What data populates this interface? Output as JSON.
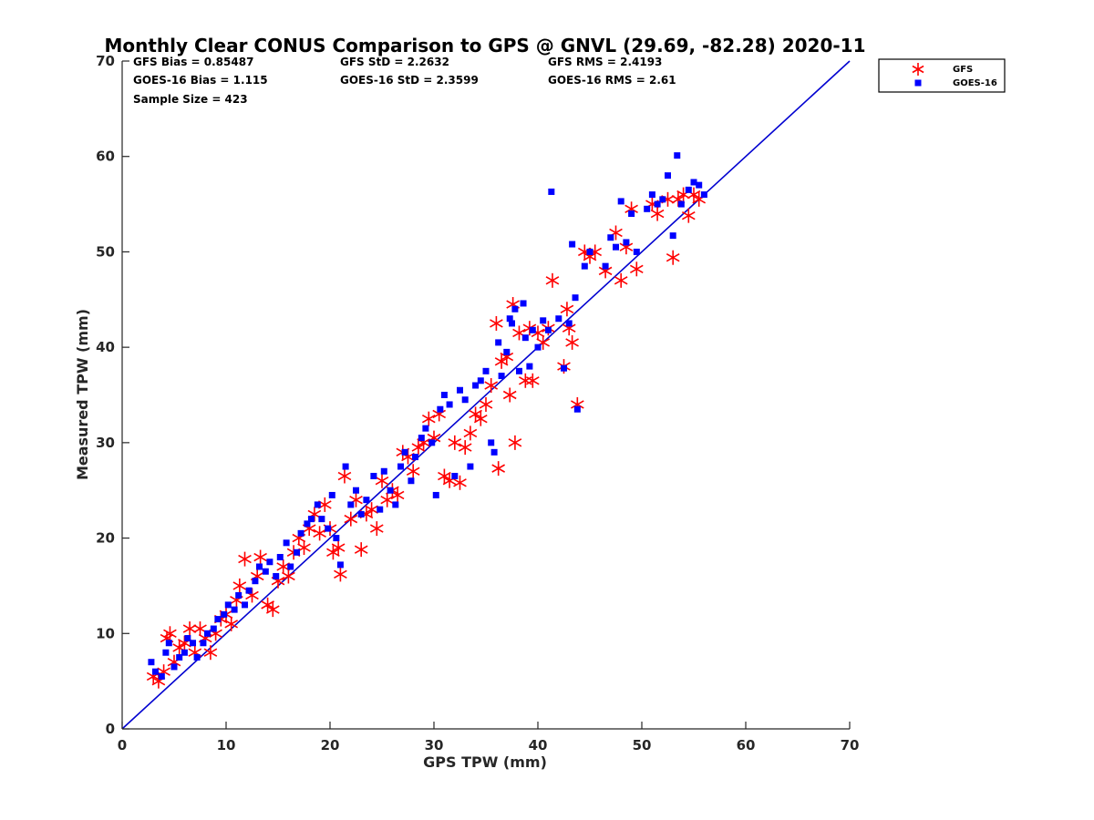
{
  "chart_data": {
    "type": "scatter",
    "title": "Monthly Clear CONUS Comparison to GPS @ GNVL (29.69, -82.28) 2020-11",
    "xlabel": "GPS TPW (mm)",
    "ylabel": "Measured TPW (mm)",
    "xlim": [
      0,
      70
    ],
    "ylim": [
      0,
      70
    ],
    "xticks": [
      "0",
      "10",
      "20",
      "30",
      "40",
      "50",
      "60",
      "70"
    ],
    "yticks": [
      "0",
      "10",
      "20",
      "30",
      "40",
      "50",
      "60",
      "70"
    ],
    "grid": false,
    "legend_position": "top-right",
    "stats": [
      [
        "GFS Bias = 0.85487",
        "GFS StD = 2.2632",
        "GFS RMS = 2.4193"
      ],
      [
        "GOES-16 Bias = 1.115",
        "GOES-16 StD = 2.3599",
        "GOES-16 RMS = 2.61"
      ],
      [
        "Sample Size = 423"
      ]
    ],
    "reference_line": {
      "style": "one-to-one",
      "color": "#0000d0",
      "from": [
        0,
        0
      ],
      "to": [
        70,
        70
      ]
    },
    "series": [
      {
        "name": "GFS",
        "marker": "asterisk",
        "color": "#ff0000",
        "points": [
          [
            3.0,
            5.5
          ],
          [
            3.5,
            5.0
          ],
          [
            4.0,
            6.0
          ],
          [
            4.3,
            9.5
          ],
          [
            4.6,
            10.0
          ],
          [
            5.0,
            7.0
          ],
          [
            5.5,
            8.5
          ],
          [
            6.0,
            9.0
          ],
          [
            6.5,
            10.5
          ],
          [
            7.0,
            8.0
          ],
          [
            7.5,
            10.5
          ],
          [
            8.0,
            9.5
          ],
          [
            8.5,
            8.0
          ],
          [
            9.0,
            10.0
          ],
          [
            9.5,
            11.5
          ],
          [
            10.0,
            12.0
          ],
          [
            10.5,
            11.0
          ],
          [
            11.0,
            13.5
          ],
          [
            11.3,
            15.0
          ],
          [
            11.8,
            17.8
          ],
          [
            12.5,
            14.0
          ],
          [
            13.0,
            16.0
          ],
          [
            13.3,
            18.0
          ],
          [
            14.0,
            13.0
          ],
          [
            14.5,
            12.5
          ],
          [
            15.0,
            15.5
          ],
          [
            15.5,
            17.0
          ],
          [
            16.0,
            16.0
          ],
          [
            16.5,
            18.5
          ],
          [
            17.0,
            20.0
          ],
          [
            17.5,
            19.0
          ],
          [
            18.0,
            21.0
          ],
          [
            18.5,
            22.5
          ],
          [
            19.0,
            20.5
          ],
          [
            19.5,
            23.5
          ],
          [
            20.0,
            21.0
          ],
          [
            20.3,
            18.5
          ],
          [
            20.8,
            19.0
          ],
          [
            21.0,
            16.2
          ],
          [
            21.4,
            26.5
          ],
          [
            22.0,
            22.0
          ],
          [
            22.5,
            24.0
          ],
          [
            23.0,
            18.8
          ],
          [
            23.5,
            22.5
          ],
          [
            24.0,
            23.0
          ],
          [
            24.5,
            21.0
          ],
          [
            25.0,
            26.0
          ],
          [
            25.5,
            24.0
          ],
          [
            26.0,
            25.0
          ],
          [
            26.5,
            24.5
          ],
          [
            27.0,
            29.0
          ],
          [
            27.5,
            28.5
          ],
          [
            28.0,
            27.0
          ],
          [
            28.5,
            29.5
          ],
          [
            29.0,
            30.0
          ],
          [
            29.5,
            32.5
          ],
          [
            30.0,
            30.5
          ],
          [
            30.5,
            33.0
          ],
          [
            31.0,
            26.5
          ],
          [
            31.5,
            26.0
          ],
          [
            32.0,
            30.0
          ],
          [
            32.5,
            25.8
          ],
          [
            33.0,
            29.5
          ],
          [
            33.5,
            31.0
          ],
          [
            34.0,
            33.0
          ],
          [
            34.5,
            32.5
          ],
          [
            35.0,
            34.0
          ],
          [
            35.5,
            36.0
          ],
          [
            36.0,
            42.5
          ],
          [
            36.2,
            27.3
          ],
          [
            36.5,
            38.5
          ],
          [
            37.0,
            39.0
          ],
          [
            37.3,
            35.0
          ],
          [
            37.6,
            44.5
          ],
          [
            37.8,
            30.0
          ],
          [
            38.2,
            41.5
          ],
          [
            38.8,
            36.5
          ],
          [
            39.2,
            42.0
          ],
          [
            39.5,
            36.5
          ],
          [
            40.0,
            41.5
          ],
          [
            40.5,
            40.5
          ],
          [
            41.0,
            42.0
          ],
          [
            41.4,
            47.0
          ],
          [
            42.5,
            38.0
          ],
          [
            42.8,
            44.0
          ],
          [
            43.0,
            42.0
          ],
          [
            43.3,
            40.5
          ],
          [
            43.8,
            34.0
          ],
          [
            44.5,
            50.0
          ],
          [
            45.0,
            49.5
          ],
          [
            45.5,
            50.0
          ],
          [
            46.5,
            48.0
          ],
          [
            47.5,
            52.0
          ],
          [
            48.0,
            47.0
          ],
          [
            48.5,
            50.5
          ],
          [
            49.0,
            54.5
          ],
          [
            49.5,
            48.2
          ],
          [
            51.0,
            55.0
          ],
          [
            51.5,
            54.0
          ],
          [
            52.5,
            55.5
          ],
          [
            53.0,
            49.4
          ],
          [
            53.5,
            55.5
          ],
          [
            54.0,
            56.0
          ],
          [
            54.5,
            53.8
          ],
          [
            55.0,
            56.0
          ],
          [
            55.5,
            55.5
          ]
        ]
      },
      {
        "name": "GOES-16",
        "marker": "square",
        "color": "#0000ff",
        "points": [
          [
            2.8,
            7.0
          ],
          [
            3.2,
            6.0
          ],
          [
            3.8,
            5.5
          ],
          [
            4.2,
            8.0
          ],
          [
            4.5,
            9.0
          ],
          [
            5.0,
            6.5
          ],
          [
            5.5,
            7.5
          ],
          [
            6.0,
            8.0
          ],
          [
            6.3,
            9.5
          ],
          [
            6.8,
            9.0
          ],
          [
            7.2,
            7.5
          ],
          [
            7.8,
            9.0
          ],
          [
            8.2,
            10.0
          ],
          [
            8.8,
            10.5
          ],
          [
            9.2,
            11.5
          ],
          [
            9.8,
            12.0
          ],
          [
            10.2,
            13.0
          ],
          [
            10.8,
            12.5
          ],
          [
            11.2,
            14.0
          ],
          [
            11.8,
            13.0
          ],
          [
            12.2,
            14.5
          ],
          [
            12.8,
            15.5
          ],
          [
            13.2,
            17.0
          ],
          [
            13.8,
            16.5
          ],
          [
            14.2,
            17.5
          ],
          [
            14.8,
            16.0
          ],
          [
            15.2,
            18.0
          ],
          [
            15.8,
            19.5
          ],
          [
            16.2,
            17.0
          ],
          [
            16.8,
            18.5
          ],
          [
            17.2,
            20.5
          ],
          [
            17.8,
            21.5
          ],
          [
            18.2,
            22.0
          ],
          [
            18.8,
            23.5
          ],
          [
            19.2,
            22.0
          ],
          [
            19.8,
            21.0
          ],
          [
            20.2,
            24.5
          ],
          [
            20.6,
            20.0
          ],
          [
            21.0,
            17.2
          ],
          [
            21.5,
            27.5
          ],
          [
            22.0,
            23.5
          ],
          [
            22.5,
            25.0
          ],
          [
            23.0,
            22.5
          ],
          [
            23.5,
            24.0
          ],
          [
            24.2,
            26.5
          ],
          [
            24.8,
            23.0
          ],
          [
            25.2,
            27.0
          ],
          [
            25.8,
            25.0
          ],
          [
            26.3,
            23.5
          ],
          [
            26.8,
            27.5
          ],
          [
            27.2,
            29.0
          ],
          [
            27.8,
            26.0
          ],
          [
            28.2,
            28.5
          ],
          [
            28.8,
            30.5
          ],
          [
            29.2,
            31.5
          ],
          [
            29.8,
            30.0
          ],
          [
            30.2,
            24.5
          ],
          [
            30.6,
            33.5
          ],
          [
            31.0,
            35.0
          ],
          [
            31.5,
            34.0
          ],
          [
            32.0,
            26.5
          ],
          [
            32.5,
            35.5
          ],
          [
            33.0,
            34.5
          ],
          [
            33.5,
            27.5
          ],
          [
            34.0,
            36.0
          ],
          [
            34.5,
            36.5
          ],
          [
            35.0,
            37.5
          ],
          [
            35.5,
            30.0
          ],
          [
            35.8,
            29.0
          ],
          [
            36.2,
            40.5
          ],
          [
            36.5,
            37.0
          ],
          [
            37.0,
            39.5
          ],
          [
            37.3,
            43.0
          ],
          [
            37.5,
            42.5
          ],
          [
            37.8,
            44.0
          ],
          [
            38.2,
            37.5
          ],
          [
            38.6,
            44.6
          ],
          [
            38.8,
            41.0
          ],
          [
            39.2,
            38.0
          ],
          [
            39.5,
            41.8
          ],
          [
            40.0,
            40.0
          ],
          [
            40.5,
            42.8
          ],
          [
            41.0,
            41.8
          ],
          [
            41.3,
            56.3
          ],
          [
            42.0,
            43.0
          ],
          [
            42.5,
            37.8
          ],
          [
            43.0,
            42.5
          ],
          [
            43.3,
            50.8
          ],
          [
            43.6,
            45.2
          ],
          [
            43.8,
            33.5
          ],
          [
            44.5,
            48.5
          ],
          [
            45.0,
            50.0
          ],
          [
            46.5,
            48.5
          ],
          [
            47.0,
            51.5
          ],
          [
            47.5,
            50.5
          ],
          [
            48.0,
            55.3
          ],
          [
            48.5,
            51.0
          ],
          [
            49.0,
            54.0
          ],
          [
            49.5,
            50.0
          ],
          [
            50.5,
            54.5
          ],
          [
            51.0,
            56.0
          ],
          [
            51.5,
            55.0
          ],
          [
            52.0,
            55.5
          ],
          [
            52.5,
            58.0
          ],
          [
            53.0,
            51.7
          ],
          [
            53.4,
            60.1
          ],
          [
            53.8,
            55.0
          ],
          [
            54.5,
            56.5
          ],
          [
            55.0,
            57.3
          ],
          [
            55.5,
            57.0
          ],
          [
            56.0,
            56.0
          ]
        ]
      }
    ]
  }
}
